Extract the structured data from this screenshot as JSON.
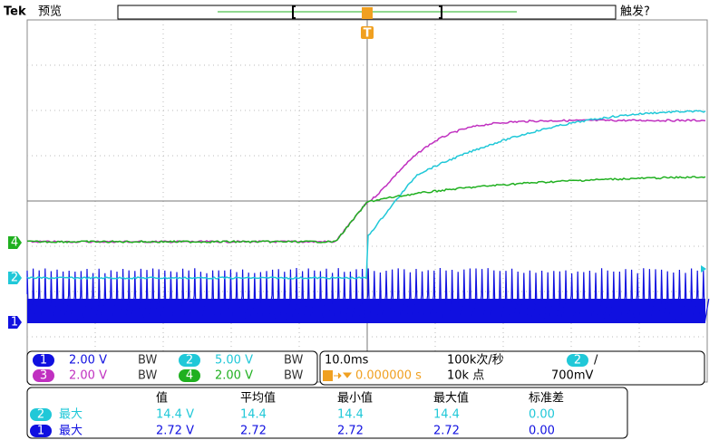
{
  "header": {
    "brand": "Tek",
    "mode": "预览",
    "trigger_status": "触发?",
    "trigger_marker": "T"
  },
  "channel_markers": [
    "4",
    "2",
    "1"
  ],
  "channels": [
    {
      "number": "1",
      "scale": "2.00 V",
      "bandwidth": "BW"
    },
    {
      "number": "2",
      "scale": "5.00 V",
      "bandwidth": "BW"
    },
    {
      "number": "3",
      "scale": "2.00 V",
      "bandwidth": "BW"
    },
    {
      "number": "4",
      "scale": "2.00 V",
      "bandwidth": "BW"
    }
  ],
  "timebase": {
    "scale": "10.0ms",
    "sample_rate": "100k次/秒",
    "trigger_source": "2",
    "trigger_slope": "/",
    "position": "0.000000 s",
    "record_length": "10k 点",
    "trigger_level": "700mV"
  },
  "measurements": {
    "columns": [
      "值",
      "平均值",
      "最小值",
      "最大值",
      "标准差"
    ],
    "rows": [
      {
        "channel": "2",
        "label": "最大",
        "cells": [
          "14.4 V",
          "14.4",
          "14.4",
          "14.4",
          "0.00"
        ]
      },
      {
        "channel": "1",
        "label": "最大",
        "cells": [
          "2.72 V",
          "2.72",
          "2.72",
          "2.72",
          "0.00"
        ]
      }
    ]
  }
}
